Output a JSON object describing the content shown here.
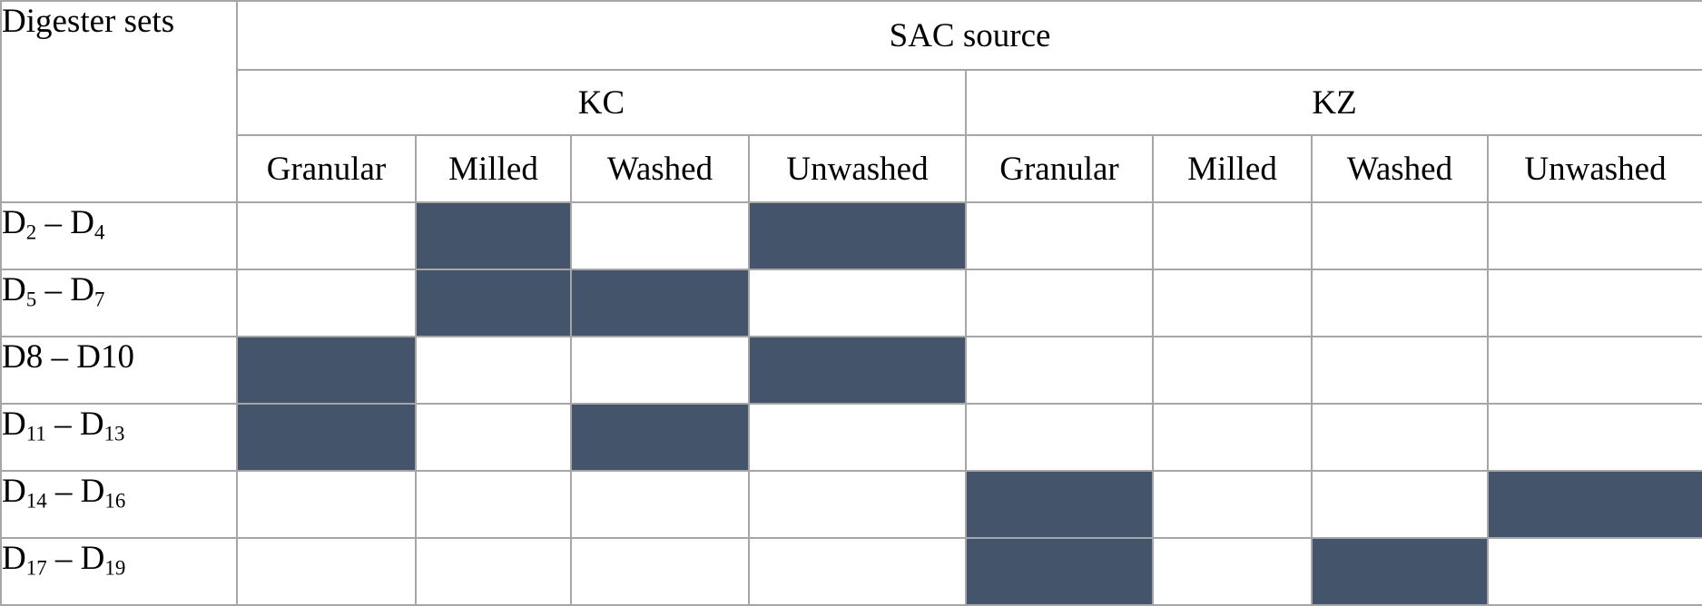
{
  "table": {
    "corner_header": "Digester sets",
    "top_header": "SAC source",
    "groups": [
      {
        "label": "KC",
        "columns": [
          "Granular",
          "Milled",
          "Washed",
          "Unwashed"
        ]
      },
      {
        "label": "KZ",
        "columns": [
          "Granular",
          "Milled",
          "Washed",
          "Unwashed"
        ]
      }
    ],
    "rows": [
      {
        "label_segments": [
          {
            "text": "D",
            "sub": false
          },
          {
            "text": "2",
            "sub": true
          },
          {
            "text": " – ",
            "sub": false
          },
          {
            "text": "D",
            "sub": false
          },
          {
            "text": "4",
            "sub": true
          }
        ],
        "filled": [
          1,
          3
        ]
      },
      {
        "label_segments": [
          {
            "text": "D",
            "sub": false
          },
          {
            "text": "5",
            "sub": true
          },
          {
            "text": " – ",
            "sub": false
          },
          {
            "text": "D",
            "sub": false
          },
          {
            "text": "7",
            "sub": true
          }
        ],
        "filled": [
          1,
          2
        ]
      },
      {
        "label_segments": [
          {
            "text": "D8 – D10",
            "sub": false
          }
        ],
        "filled": [
          0,
          3
        ]
      },
      {
        "label_segments": [
          {
            "text": "D",
            "sub": false
          },
          {
            "text": "11",
            "sub": true
          },
          {
            "text": " – ",
            "sub": false
          },
          {
            "text": "D",
            "sub": false
          },
          {
            "text": "13",
            "sub": true
          }
        ],
        "filled": [
          0,
          2
        ]
      },
      {
        "label_segments": [
          {
            "text": "D",
            "sub": false
          },
          {
            "text": "14",
            "sub": true
          },
          {
            "text": " – ",
            "sub": false
          },
          {
            "text": "D",
            "sub": false
          },
          {
            "text": "16",
            "sub": true
          }
        ],
        "filled": [
          4,
          7
        ]
      },
      {
        "label_segments": [
          {
            "text": "D",
            "sub": false
          },
          {
            "text": "17",
            "sub": true
          },
          {
            "text": " – ",
            "sub": false
          },
          {
            "text": "D",
            "sub": false
          },
          {
            "text": "19",
            "sub": true
          }
        ],
        "filled": [
          4,
          6
        ]
      }
    ],
    "colors": {
      "filled_cell": "#44546A",
      "thin_border": "#A6A6A6",
      "thick_border": "#7F7F7F"
    }
  }
}
